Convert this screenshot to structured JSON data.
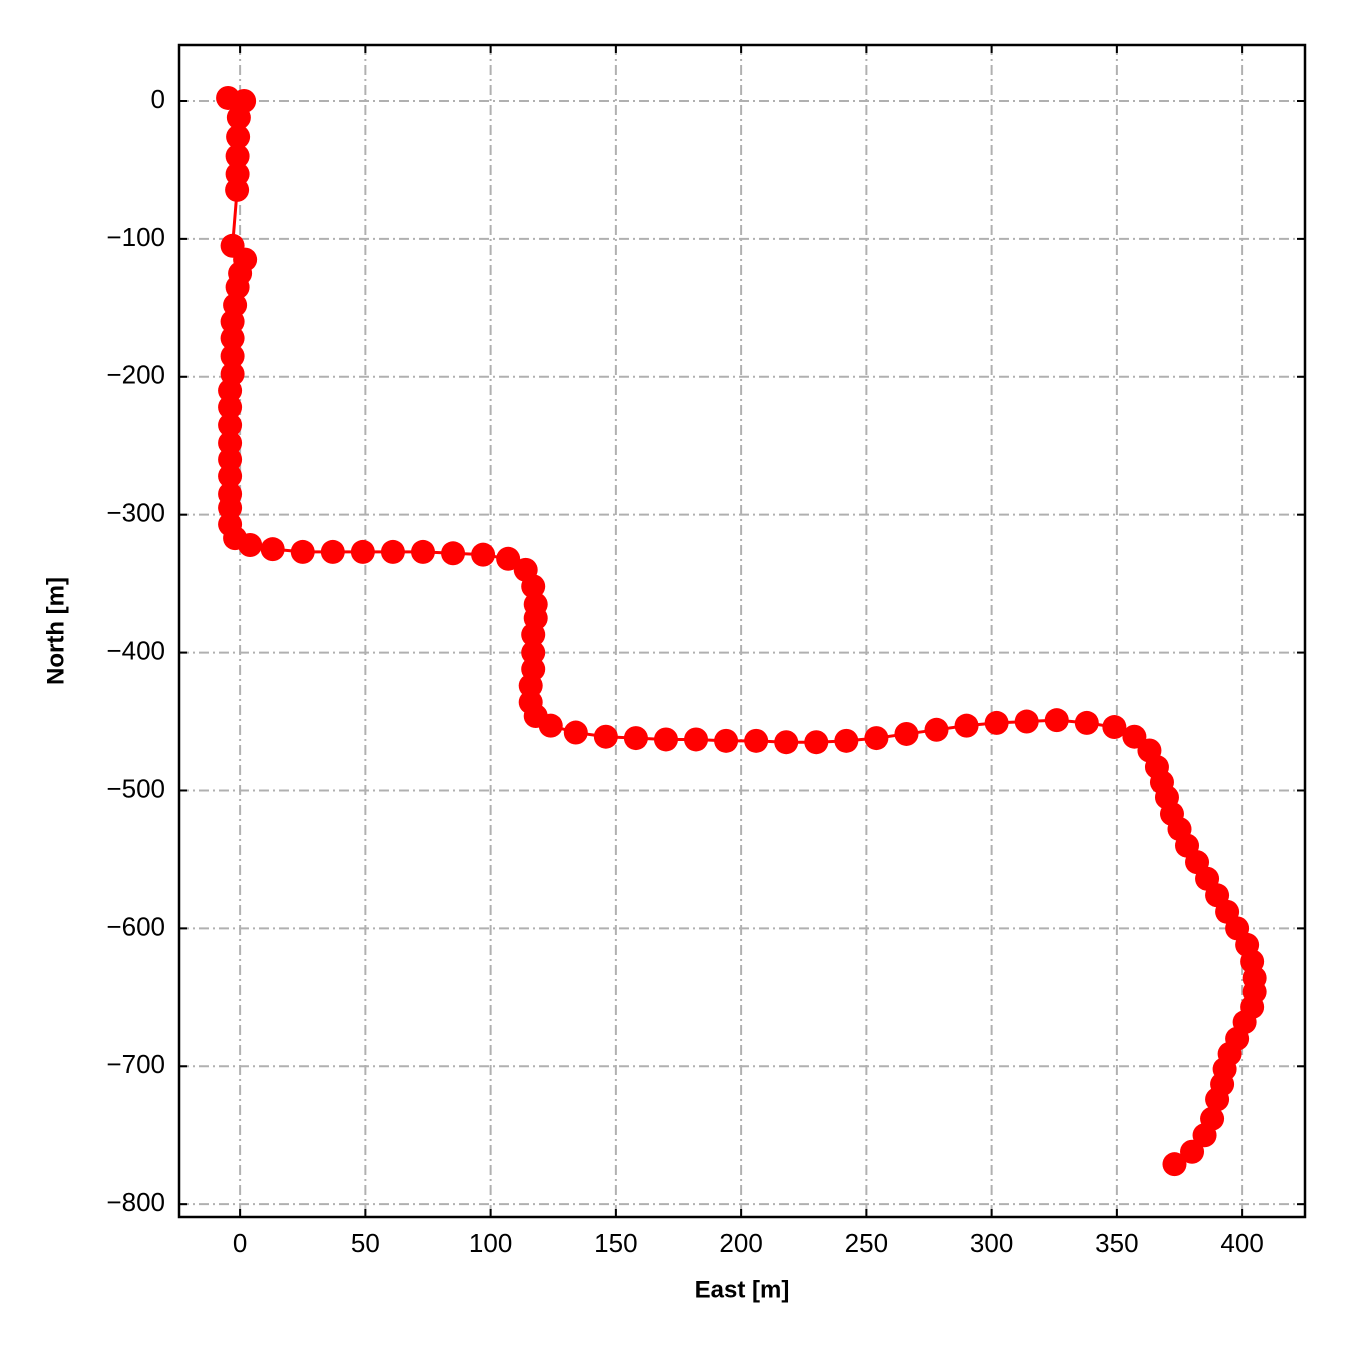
{
  "chart_data": {
    "type": "line",
    "xlabel": "East [m]",
    "ylabel": "North [m]",
    "color": "#ff0000",
    "marker": "o",
    "grid": true,
    "x": [
      -4.8,
      1.6,
      -0.5,
      -0.8,
      -1,
      -1,
      -1.2,
      -3,
      2,
      0,
      -1,
      -2,
      -3,
      -3,
      -3,
      -3,
      -4,
      -4,
      -4,
      -4,
      -4,
      -4,
      -4,
      -4,
      -4,
      -2,
      4,
      13,
      25,
      37,
      49,
      61,
      73,
      85,
      97,
      107,
      114,
      117,
      118,
      118,
      117,
      117,
      117,
      116,
      116,
      118,
      124,
      134,
      146,
      158,
      170,
      182,
      194,
      206,
      218,
      230,
      242,
      254,
      266,
      278,
      290,
      302,
      314,
      326,
      338,
      349,
      357,
      363,
      366,
      368,
      370,
      372,
      375,
      378,
      382,
      386,
      390,
      394,
      398,
      402,
      404,
      405,
      405,
      404,
      401,
      398,
      395,
      393,
      392,
      390,
      388,
      385,
      380,
      373
    ],
    "values": [
      2.2,
      0,
      -12,
      -26,
      -40,
      -53,
      -64.5,
      -105,
      -115,
      -125,
      -135,
      -148,
      -160,
      -172,
      -185,
      -198,
      -210,
      -222,
      -235,
      -248,
      -260,
      -272,
      -285,
      -295,
      -307,
      -317,
      -322,
      -325,
      -327,
      -327,
      -327,
      -327,
      -327,
      -328,
      -329,
      -332,
      -340,
      -352,
      -365,
      -375,
      -387,
      -400,
      -412,
      -424,
      -436,
      -446,
      -453,
      -458,
      -461,
      -462,
      -463,
      -463,
      -464,
      -464,
      -465,
      -465,
      -464,
      -462,
      -459,
      -456,
      -453,
      -451,
      -450,
      -449,
      -451,
      -454,
      -461,
      -471,
      -483,
      -494,
      -505,
      -517,
      -528,
      -540,
      -552,
      -564,
      -576,
      -588,
      -600,
      -612,
      -624,
      -636,
      -646,
      -657,
      -668,
      -680,
      -691,
      -702,
      -713,
      -724,
      -738,
      -750,
      -762,
      -771
    ],
    "xlim": [
      -24.4,
      425.1
    ],
    "ylim": [
      -809.3,
      40.6
    ],
    "xticks": [
      0,
      50,
      100,
      150,
      200,
      250,
      300,
      350,
      400
    ],
    "yticks": [
      0,
      {
        "value": -100,
        "label": "−100"
      },
      {
        "value": -200,
        "label": "−200"
      },
      {
        "value": -300,
        "label": "−300"
      },
      {
        "value": -400,
        "label": "−400"
      },
      {
        "value": -500,
        "label": "−500"
      },
      {
        "value": -600,
        "label": "−600"
      },
      {
        "value": -700,
        "label": "−700"
      },
      {
        "value": -800,
        "label": "−800"
      }
    ]
  }
}
